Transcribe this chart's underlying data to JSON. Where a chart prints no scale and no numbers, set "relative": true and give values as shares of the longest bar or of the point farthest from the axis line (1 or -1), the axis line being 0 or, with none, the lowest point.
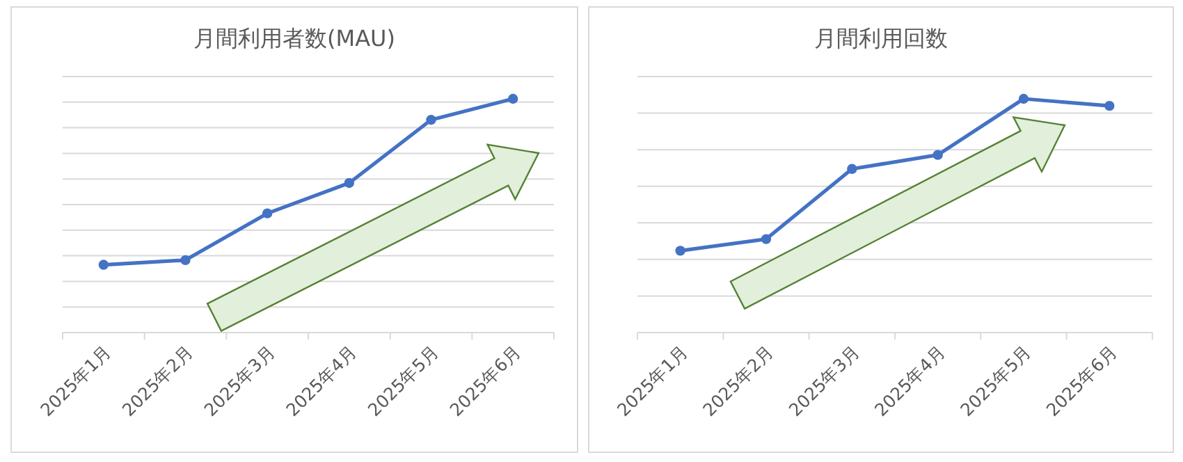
{
  "chart_data": [
    {
      "type": "line",
      "title": "月間利用者数(MAU)",
      "categories": [
        "2025年1月",
        "2025年2月",
        "2025年3月",
        "2025年4月",
        "2025年5月",
        "2025年6月"
      ],
      "relative": true,
      "grid": "y",
      "marker": "circle",
      "line_style": "solid",
      "series": [
        {
          "color": "#4472c4",
          "values": [
            0.29,
            0.31,
            0.51,
            0.64,
            0.91,
            1.0
          ]
        }
      ]
    },
    {
      "type": "line",
      "title": "月間利用回数",
      "categories": [
        "2025年1月",
        "2025年2月",
        "2025年3月",
        "2025年4月",
        "2025年5月",
        "2025年6月"
      ],
      "relative": true,
      "grid": "y",
      "marker": "circle",
      "line_style": "solid",
      "series": [
        {
          "color": "#4472c4",
          "values": [
            0.35,
            0.4,
            0.7,
            0.76,
            1.0,
            0.97
          ]
        }
      ]
    }
  ]
}
